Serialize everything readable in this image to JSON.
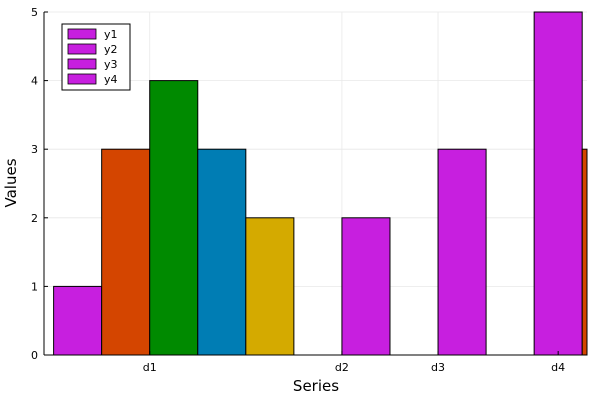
{
  "chart_data": {
    "type": "bar",
    "xlabel": "Series",
    "ylabel": "Values",
    "ylim": [
      0,
      5
    ],
    "yticks": [
      0,
      1,
      2,
      3,
      4,
      5
    ],
    "grid": true,
    "legend_position": "top-left",
    "legend": [
      {
        "label": "y1",
        "color": "#c71fdf"
      },
      {
        "label": "y2",
        "color": "#c71fdf"
      },
      {
        "label": "y3",
        "color": "#c71fdf"
      },
      {
        "label": "y4",
        "color": "#c71fdf"
      }
    ],
    "x_range": [
      0.4,
      6.05
    ],
    "x_ticks": [
      {
        "label": "d1",
        "x": 1.5
      },
      {
        "label": "d2",
        "x": 3.5
      },
      {
        "label": "d3",
        "x": 4.5
      },
      {
        "label": "d4",
        "x": 5.75
      }
    ],
    "bars": [
      {
        "x0": 0.5,
        "x1": 1.0,
        "value": 1,
        "color": "#c71fdf"
      },
      {
        "x0": 1.0,
        "x1": 1.5,
        "value": 3,
        "color": "#d44500"
      },
      {
        "x0": 1.5,
        "x1": 2.0,
        "value": 4,
        "color": "#008a00"
      },
      {
        "x0": 2.0,
        "x1": 2.5,
        "value": 3,
        "color": "#007db4"
      },
      {
        "x0": 2.5,
        "x1": 3.0,
        "value": 2,
        "color": "#d4aa00"
      },
      {
        "x0": 3.5,
        "x1": 4.0,
        "value": 2,
        "color": "#c71fdf"
      },
      {
        "x0": 4.5,
        "x1": 5.0,
        "value": 3,
        "color": "#c71fdf"
      },
      {
        "x0": 5.5,
        "x1": 6.0,
        "value": 5,
        "color": "#c71fdf"
      },
      {
        "x0": 6.0,
        "x1": 6.5,
        "value": 3,
        "color": "#d44500"
      }
    ]
  }
}
